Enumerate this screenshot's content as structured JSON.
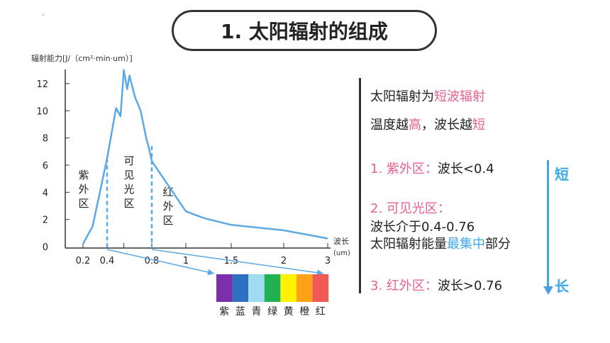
{
  "header": {
    "title": "1. 太阳辐射的组成"
  },
  "chart_data": {
    "type": "line",
    "ylabel": "辐射能力[J/（cm²·min·um）]",
    "xlabel": "波长",
    "xunit": "(um)",
    "y_ticks": [
      "12",
      "10",
      "8",
      "6",
      "4",
      "2",
      "0"
    ],
    "x_ticks": [
      "0.2",
      "0.4",
      "0.8",
      "1",
      "1.5",
      "2",
      "3"
    ],
    "series": [
      {
        "x": [
          0.2,
          0.28,
          0.4,
          0.48,
          0.52,
          0.55,
          0.58,
          0.6,
          0.65,
          0.7,
          0.75,
          0.77,
          0.8,
          1.0,
          1.2,
          1.5,
          2.0,
          3.0
        ],
        "y": [
          0.2,
          1.5,
          6.5,
          10.2,
          9.6,
          13.0,
          11.6,
          12.6,
          11.0,
          10.0,
          8.0,
          7.4,
          6.3,
          2.6,
          2.1,
          1.6,
          1.2,
          0.6
        ]
      }
    ],
    "regions": [
      {
        "label_lines": [
          "紫",
          "外",
          "区"
        ]
      },
      {
        "label_lines": [
          "可",
          "见",
          "光",
          "区"
        ]
      },
      {
        "label_lines": [
          "红",
          "外",
          "区"
        ]
      }
    ],
    "spectrum": {
      "colors": [
        "#7b2fa8",
        "#2f6fbf",
        "#9fdcef",
        "#1fb152",
        "#fff200",
        "#ffa21a",
        "#f05a55"
      ],
      "labels": [
        "紫",
        "蓝",
        "青",
        "绿",
        "黄",
        "橙",
        "红"
      ]
    }
  },
  "side": {
    "l1": [
      "太阳辐射为",
      "短波辐射"
    ],
    "l2": [
      "温度越",
      "高",
      "，波长越",
      "短"
    ],
    "uv_head": "1. 紫外区：",
    "uv_tail": "波长<0.4",
    "vis_head": "2. 可见光区：",
    "vis_l2": "波长介于0.4-0.76",
    "vis_l3": [
      "太阳辐射能量",
      "最集中",
      "部分"
    ],
    "ir_head": "3. 红外区：",
    "ir_tail": "波长>0.76",
    "short": "短",
    "long": "长"
  },
  "colors": {
    "curve": "#5aa9e6",
    "pink": "#e8618c",
    "blue": "#3da9e8"
  }
}
